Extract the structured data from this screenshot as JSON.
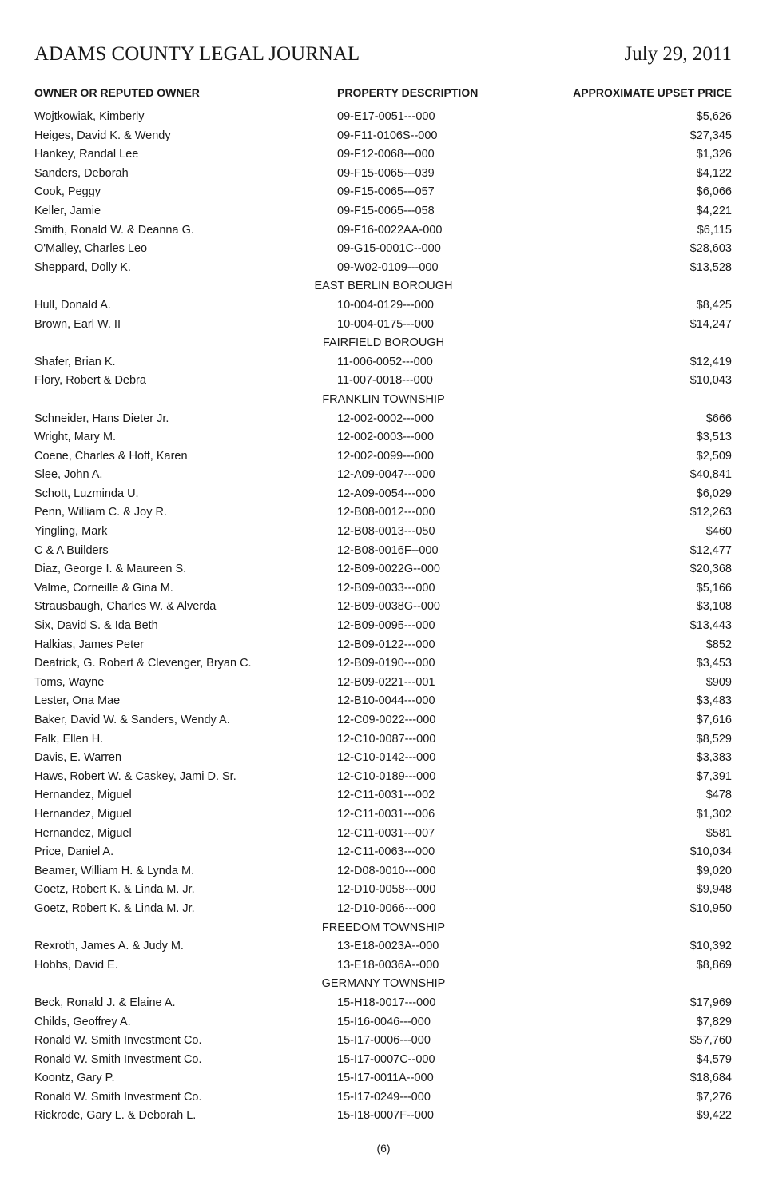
{
  "header": {
    "publication": "ADAMS COUNTY LEGAL JOURNAL",
    "date": "July 29, 2011"
  },
  "columns": {
    "owner": "OWNER OR REPUTED OWNER",
    "property": "PROPERTY DESCRIPTION",
    "price": "APPROXIMATE UPSET PRICE"
  },
  "rows": [
    {
      "owner": "Wojtkowiak, Kimberly",
      "property": "09-E17-0051---000",
      "price": "$5,626"
    },
    {
      "owner": "Heiges, David K. & Wendy",
      "property": "09-F11-0106S--000",
      "price": "$27,345"
    },
    {
      "owner": "Hankey, Randal Lee",
      "property": "09-F12-0068---000",
      "price": "$1,326"
    },
    {
      "owner": "Sanders, Deborah",
      "property": "09-F15-0065---039",
      "price": "$4,122"
    },
    {
      "owner": "Cook, Peggy",
      "property": "09-F15-0065---057",
      "price": "$6,066"
    },
    {
      "owner": "Keller, Jamie",
      "property": "09-F15-0065---058",
      "price": "$4,221"
    },
    {
      "owner": "Smith, Ronald W. & Deanna G.",
      "property": "09-F16-0022AA-000",
      "price": "$6,115"
    },
    {
      "owner": "O'Malley, Charles Leo",
      "property": "09-G15-0001C--000",
      "price": "$28,603"
    },
    {
      "owner": "Sheppard, Dolly K.",
      "property": "09-W02-0109---000",
      "price": "$13,528"
    },
    {
      "section": "EAST BERLIN BOROUGH"
    },
    {
      "owner": "Hull, Donald A.",
      "property": "10-004-0129---000",
      "price": "$8,425"
    },
    {
      "owner": "Brown, Earl W. II",
      "property": "10-004-0175---000",
      "price": "$14,247"
    },
    {
      "section": "FAIRFIELD BOROUGH"
    },
    {
      "owner": "Shafer, Brian K.",
      "property": "11-006-0052---000",
      "price": "$12,419"
    },
    {
      "owner": "Flory, Robert & Debra",
      "property": "11-007-0018---000",
      "price": "$10,043"
    },
    {
      "section": "FRANKLIN TOWNSHIP"
    },
    {
      "owner": "Schneider, Hans Dieter Jr.",
      "property": "12-002-0002---000",
      "price": "$666"
    },
    {
      "owner": "Wright, Mary M.",
      "property": "12-002-0003---000",
      "price": "$3,513"
    },
    {
      "owner": "Coene, Charles & Hoff, Karen",
      "property": "12-002-0099---000",
      "price": "$2,509"
    },
    {
      "owner": "Slee, John A.",
      "property": "12-A09-0047---000",
      "price": "$40,841"
    },
    {
      "owner": "Schott, Luzminda U.",
      "property": "12-A09-0054---000",
      "price": "$6,029"
    },
    {
      "owner": "Penn, William C. & Joy R.",
      "property": "12-B08-0012---000",
      "price": "$12,263"
    },
    {
      "owner": "Yingling, Mark",
      "property": "12-B08-0013---050",
      "price": "$460"
    },
    {
      "owner": "C & A Builders",
      "property": "12-B08-0016F--000",
      "price": "$12,477"
    },
    {
      "owner": "Diaz, George I. & Maureen S.",
      "property": "12-B09-0022G--000",
      "price": "$20,368"
    },
    {
      "owner": "Valme, Corneille & Gina M.",
      "property": "12-B09-0033---000",
      "price": "$5,166"
    },
    {
      "owner": "Strausbaugh, Charles W. & Alverda",
      "property": "12-B09-0038G--000",
      "price": "$3,108"
    },
    {
      "owner": "Six, David S. & Ida Beth",
      "property": "12-B09-0095---000",
      "price": "$13,443"
    },
    {
      "owner": "Halkias, James Peter",
      "property": "12-B09-0122---000",
      "price": "$852"
    },
    {
      "owner": "Deatrick, G. Robert & Clevenger, Bryan C.",
      "property": "12-B09-0190---000",
      "price": "$3,453"
    },
    {
      "owner": "Toms, Wayne",
      "property": "12-B09-0221---001",
      "price": "$909"
    },
    {
      "owner": "Lester, Ona Mae",
      "property": "12-B10-0044---000",
      "price": "$3,483"
    },
    {
      "owner": "Baker, David W. & Sanders, Wendy A.",
      "property": "12-C09-0022---000",
      "price": "$7,616"
    },
    {
      "owner": "Falk, Ellen H.",
      "property": "12-C10-0087---000",
      "price": "$8,529"
    },
    {
      "owner": "Davis, E. Warren",
      "property": "12-C10-0142---000",
      "price": "$3,383"
    },
    {
      "owner": "Haws, Robert W. & Caskey, Jami D. Sr.",
      "property": "12-C10-0189---000",
      "price": "$7,391"
    },
    {
      "owner": "Hernandez, Miguel",
      "property": "12-C11-0031---002",
      "price": "$478"
    },
    {
      "owner": "Hernandez, Miguel",
      "property": "12-C11-0031---006",
      "price": "$1,302"
    },
    {
      "owner": "Hernandez, Miguel",
      "property": "12-C11-0031---007",
      "price": "$581"
    },
    {
      "owner": "Price, Daniel A.",
      "property": "12-C11-0063---000",
      "price": "$10,034"
    },
    {
      "owner": "Beamer, William H. & Lynda M.",
      "property": "12-D08-0010---000",
      "price": "$9,020"
    },
    {
      "owner": "Goetz, Robert K. & Linda M. Jr.",
      "property": "12-D10-0058---000",
      "price": "$9,948"
    },
    {
      "owner": "Goetz, Robert K. & Linda M. Jr.",
      "property": "12-D10-0066---000",
      "price": "$10,950"
    },
    {
      "section": "FREEDOM TOWNSHIP"
    },
    {
      "owner": "Rexroth, James A. & Judy M.",
      "property": "13-E18-0023A--000",
      "price": "$10,392"
    },
    {
      "owner": "Hobbs, David E.",
      "property": "13-E18-0036A--000",
      "price": "$8,869"
    },
    {
      "section": "GERMANY TOWNSHIP"
    },
    {
      "owner": "Beck, Ronald J. & Elaine A.",
      "property": "15-H18-0017---000",
      "price": "$17,969"
    },
    {
      "owner": "Childs, Geoffrey A.",
      "property": "15-I16-0046---000",
      "price": "$7,829"
    },
    {
      "owner": "Ronald W. Smith Investment Co.",
      "property": "15-I17-0006---000",
      "price": "$57,760"
    },
    {
      "owner": "Ronald W. Smith Investment Co.",
      "property": "15-I17-0007C--000",
      "price": "$4,579"
    },
    {
      "owner": "Koontz, Gary P.",
      "property": "15-I17-0011A--000",
      "price": "$18,684"
    },
    {
      "owner": "Ronald W. Smith Investment Co.",
      "property": "15-I17-0249---000",
      "price": "$7,276"
    },
    {
      "owner": "Rickrode, Gary L. & Deborah L.",
      "property": "15-I18-0007F--000",
      "price": "$9,422"
    }
  ],
  "footer": {
    "page_number": "(6)"
  }
}
